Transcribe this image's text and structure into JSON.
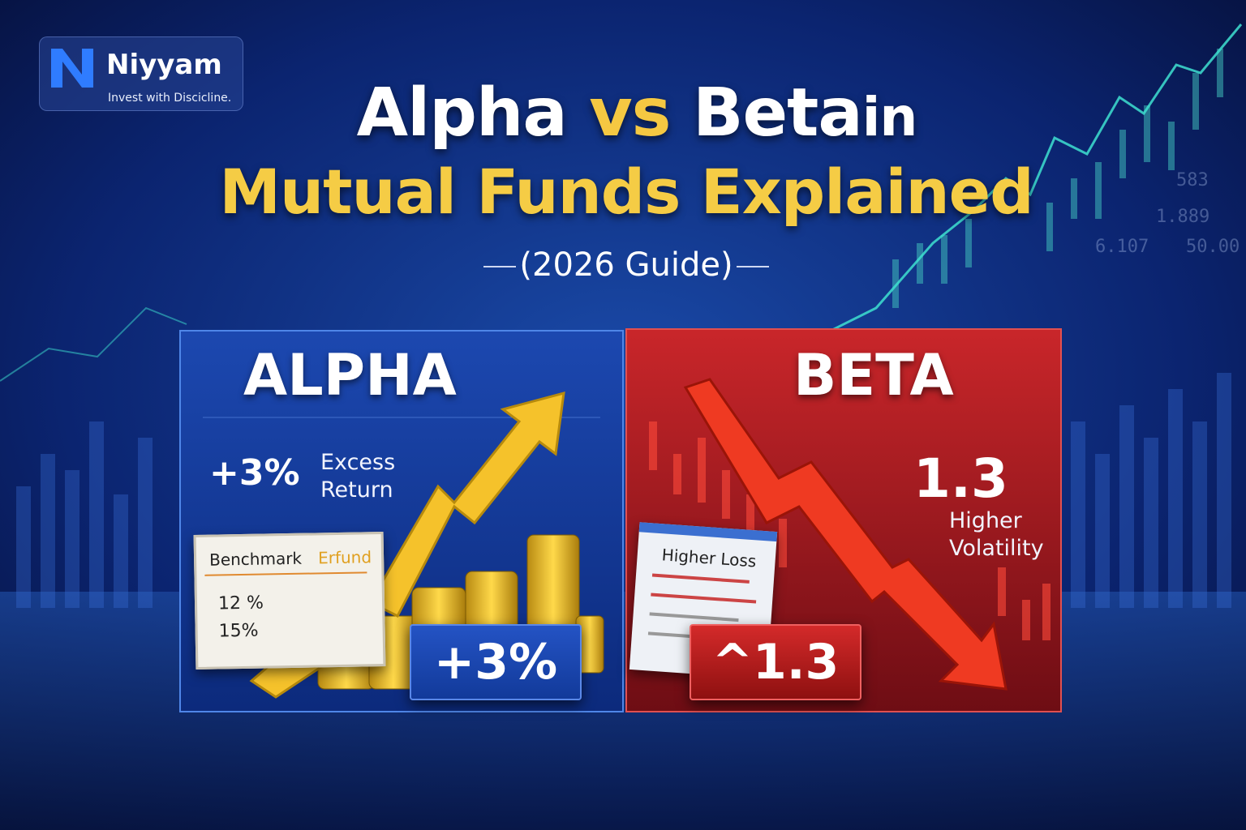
{
  "logo": {
    "name": "Niyyam",
    "tagline": "Invest with Discicline."
  },
  "title": {
    "line1": {
      "word1": "Alpha",
      "word2": "vs",
      "word3": "Beta",
      "word4": "in"
    },
    "line2": "Mutual Funds Explained",
    "subtitle": "(2026 Guide)"
  },
  "background_numbers": [
    "583",
    "1.889",
    "6.107",
    "50.00"
  ],
  "alpha_panel": {
    "heading": "ALPHA",
    "stat": "+3%",
    "stat_label": {
      "line1": "Excess",
      "line2": "Return"
    },
    "card": {
      "header1": "Benchmark",
      "header2": "Erfund",
      "row1": "12 %",
      "row2": "15%"
    },
    "badge": "+3%"
  },
  "beta_panel": {
    "heading": "BETA",
    "stat": "1.3",
    "stat_label": {
      "line1": "Higher",
      "line2": "Volatility"
    },
    "paper": {
      "title": "Higher Loss"
    },
    "badge": "^1.3"
  }
}
